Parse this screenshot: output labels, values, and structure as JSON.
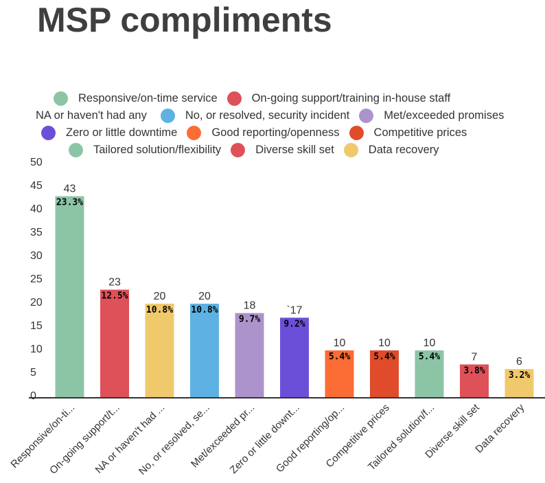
{
  "title": "MSP compliments",
  "legend": {
    "rows": [
      [
        {
          "label": "Responsive/on-time service",
          "color": "#8cc5a6"
        },
        {
          "label": "On-going support/training in-house staff",
          "color": "#de5158"
        }
      ],
      [
        {
          "label": "NA or haven't had any",
          "color": "#f0c96c",
          "hide_dot": true
        },
        {
          "label": "No, or resolved, security incident",
          "color": "#5db2e3"
        },
        {
          "label": "Met/exceeded promises",
          "color": "#ad93cb"
        }
      ],
      [
        {
          "label": "Zero or little downtime",
          "color": "#6c4fd9"
        },
        {
          "label": "Good reporting/openness",
          "color": "#fc6c35"
        },
        {
          "label": "Competitive prices",
          "color": "#e04c2b"
        }
      ],
      [
        {
          "label": "Tailored solution/flexibility",
          "color": "#8cc5a6"
        },
        {
          "label": "Diverse skill set",
          "color": "#de5158"
        },
        {
          "label": "Data recovery",
          "color": "#f0c96c"
        }
      ]
    ]
  },
  "chart_data": {
    "type": "bar",
    "title": "MSP compliments",
    "xlabel": "",
    "ylabel": "",
    "ylim": [
      0,
      50
    ],
    "yticks": [
      "0",
      "5",
      "10",
      "15",
      "20",
      "25",
      "30",
      "35",
      "40",
      "45",
      "50"
    ],
    "grid": false,
    "legend_position": "top",
    "categories": [
      "Responsive/on-ti...",
      "On-going support/t...",
      "NA or haven't had ...",
      "No, or resolved, se...",
      "Met/exceeded pr...",
      "Zero or little downt...",
      "Good reporting/op...",
      "Competitive prices",
      "Tailored solution/f...",
      "Diverse skill set",
      "Data recovery"
    ],
    "values": [
      43,
      23,
      20,
      20,
      18,
      17,
      10,
      10,
      10,
      7,
      6
    ],
    "value_labels": [
      "43",
      "23",
      "20",
      "20",
      "18",
      "`17",
      "10",
      "10",
      "10",
      "7",
      "6"
    ],
    "percent_labels": [
      "23.3%",
      "12.5%",
      "10.8%",
      "10.8%",
      "9.7%",
      "9.2%",
      "5.4%",
      "5.4%",
      "5.4%",
      "3.8%",
      "3.2%"
    ],
    "colors": [
      "#8cc5a6",
      "#de5158",
      "#f0c96c",
      "#5db2e3",
      "#ad93cb",
      "#6c4fd9",
      "#fc6c35",
      "#e04c2b",
      "#8cc5a6",
      "#de5158",
      "#f0c96c"
    ]
  }
}
